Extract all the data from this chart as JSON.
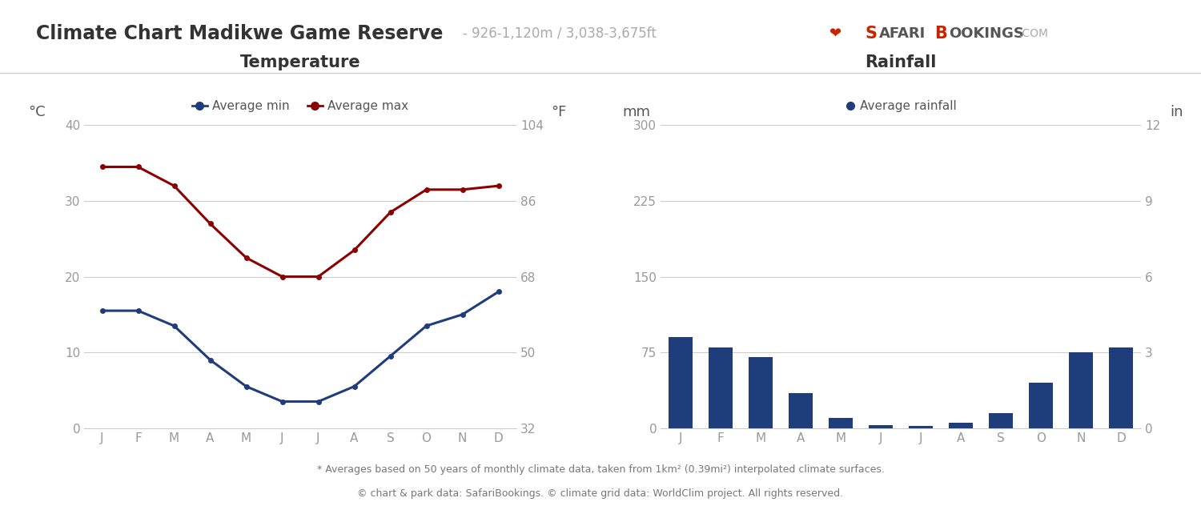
{
  "title": "Climate Chart Madikwe Game Reserve",
  "subtitle": "- 926-1,120m / 3,038-3,675ft",
  "months": [
    "J",
    "F",
    "M",
    "A",
    "M",
    "J",
    "J",
    "A",
    "S",
    "O",
    "N",
    "D"
  ],
  "temp_min": [
    15.5,
    15.5,
    13.5,
    9.0,
    5.5,
    3.5,
    3.5,
    5.5,
    9.5,
    13.5,
    15.0,
    18.0
  ],
  "temp_max": [
    34.5,
    34.5,
    32.0,
    27.0,
    22.5,
    20.0,
    20.0,
    23.5,
    28.5,
    31.5,
    31.5,
    32.0
  ],
  "rainfall_mm": [
    90,
    80,
    70,
    35,
    10,
    3,
    2,
    5,
    15,
    45,
    75,
    80
  ],
  "temp_min_color": "#1f3d7a",
  "temp_max_color": "#8b0000",
  "bar_color": "#1f3d7a",
  "temp_title": "Temperature",
  "rain_title": "Rainfall",
  "temp_ylabel_left": "°C",
  "temp_ylabel_right": "°F",
  "rain_ylabel_left": "mm",
  "rain_ylabel_right": "in",
  "temp_ylim_c": [
    0,
    40
  ],
  "temp_yticks_c": [
    0,
    10,
    20,
    30,
    40
  ],
  "temp_yticks_f": [
    32,
    50,
    68,
    86,
    104
  ],
  "rain_ylim_mm": [
    0,
    300
  ],
  "rain_yticks_mm": [
    0,
    75,
    150,
    225,
    300
  ],
  "rain_yticks_in": [
    0,
    3,
    6,
    9,
    12
  ],
  "footer1": "* Averages based on 50 years of monthly climate data, taken from 1km² (0.39mi²) interpolated climate surfaces.",
  "footer2": "© chart & park data: SafariBookings. © climate grid data: WorldClim project. All rights reserved.",
  "grid_color": "#cccccc",
  "axis_color": "#999999",
  "background_color": "#ffffff",
  "label_color": "#555555",
  "title_color": "#333333"
}
